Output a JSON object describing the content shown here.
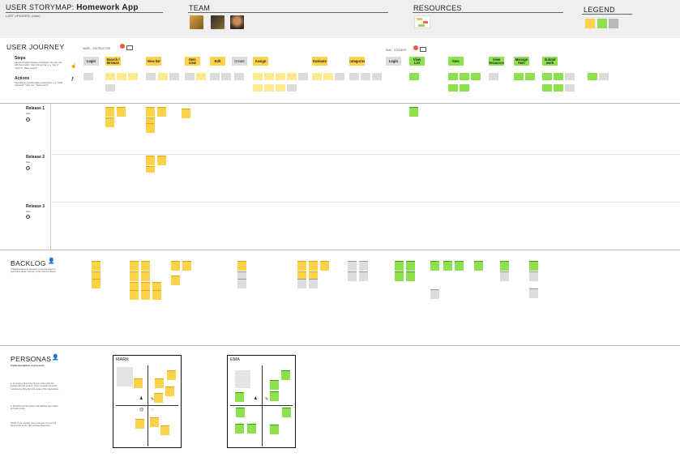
{
  "header": {
    "title_prefix": "USER STORYMAP:",
    "title_app": "Homework App",
    "last_updated": "LAST UPDATED: (date)",
    "team_title": "TEAM",
    "resources_title": "RESOURCES",
    "legend_title": "LEGEND"
  },
  "journey": {
    "title": "USER JOURNEY",
    "persona_a": "MARK - INSTRUCTOR",
    "persona_b": "EMA - STUDENT",
    "steps_label": "Steps",
    "steps_help": "Add the broader phases of interaction the user has with the product. Using the top bar, e.g. \"Log in\" \"Search\" \"Make content\"",
    "actions_label": "Actions",
    "actions_help": "Describe the specific tasks of interaction, e.g. \"Write password\" \"Filter ALL\" \"Edit content\"",
    "steps_a": [
      "Login",
      "Search / Browse",
      "View list",
      "Item view",
      "Edit",
      "Create",
      "Assign",
      "Evaluate",
      "Categorize"
    ],
    "steps_b": [
      "Login",
      "View List",
      "Item",
      "View Resources",
      "Manage Item",
      "Submit work"
    ]
  },
  "releases": [
    {
      "label": "Release 1",
      "sub": "Date"
    },
    {
      "label": "Release 2",
      "sub": "Date"
    },
    {
      "label": "Release 3",
      "sub": "Date"
    }
  ],
  "backlog": {
    "title": "BACKLOG",
    "help": "Unfinished ideas to research or use the space to park future ideas. Link any of the columns above."
  },
  "personas": {
    "title": "PERSONAS",
    "subtitle": "Create descriptions of your users.",
    "help1": "1. As a team, determine the key users who will interact with the product. Then complete the proto-personas by filling the four areas of the frameworks.",
    "help2": "2. Discuss how the system will address their needs and pain points.",
    "help3": "NOTE: If you already have personas, remove the frameworks to the right and add them here.",
    "card_a": "MARK",
    "card_b": "EMA"
  },
  "colors": {
    "yellow": "#fcd24a",
    "green": "#8ee04f",
    "gray": "#dcdcdc",
    "red": "#e85b3c"
  }
}
